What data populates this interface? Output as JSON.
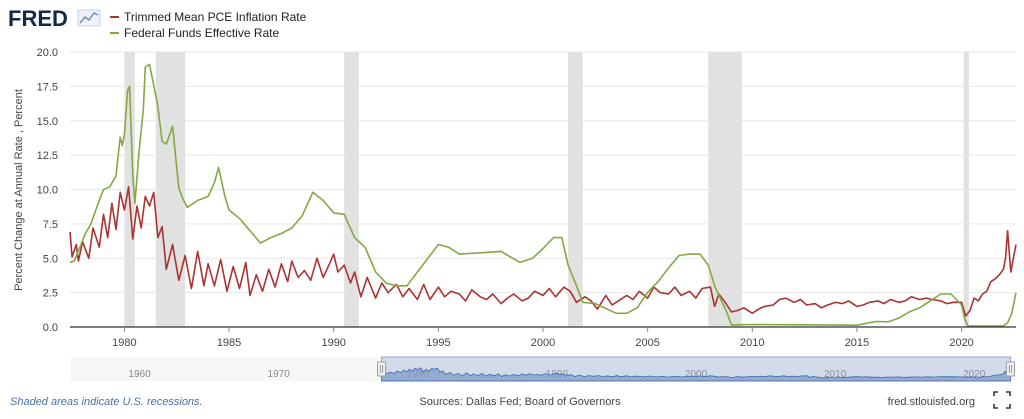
{
  "logo": {
    "text": "FRED"
  },
  "legend_items": [
    {
      "label": "Trimmed Mean PCE Inflation Rate",
      "color": "#aa3333"
    },
    {
      "label": "Federal Funds Effective Rate",
      "color": "#84a843"
    }
  ],
  "footer": {
    "recession_note": "Shaded areas indicate U.S. recessions.",
    "sources": "Sources: Dallas Fed; Board of Governors",
    "site": "fred.stlouisfed.org"
  },
  "colors": {
    "recession": "#e1e1e1",
    "grid": "#e6e6e6",
    "navigator_fill": "#7f9cca",
    "navigator_line": "#3d66a6",
    "link": "#4c6fa5"
  },
  "navigator": {
    "ticks": [
      {
        "year": 1960,
        "label": "1960"
      },
      {
        "year": 1970,
        "label": "1970"
      },
      {
        "year": 1980,
        "label": "1980"
      },
      {
        "year": 1990,
        "label": "1990"
      },
      {
        "year": 2000,
        "label": "2000"
      },
      {
        "year": 2010,
        "label": "2010"
      },
      {
        "year": 2020,
        "label": "2020"
      }
    ],
    "range_years": [
      1955,
      2023
    ],
    "selected_years": [
      1977.4,
      2022.6
    ]
  },
  "chart_data": {
    "type": "line",
    "title": "",
    "xlabel": "",
    "ylabel": "Percent Change at Annual Rate , Percent",
    "xlim": [
      1977.4,
      2022.6
    ],
    "ylim": [
      0,
      20
    ],
    "grid": true,
    "legend_position": "top-left",
    "x_ticks": [
      {
        "value": 1980,
        "label": "1980"
      },
      {
        "value": 1985,
        "label": "1985"
      },
      {
        "value": 1990,
        "label": "1990"
      },
      {
        "value": 1995,
        "label": "1995"
      },
      {
        "value": 2000,
        "label": "2000"
      },
      {
        "value": 2005,
        "label": "2005"
      },
      {
        "value": 2010,
        "label": "2010"
      },
      {
        "value": 2015,
        "label": "2015"
      },
      {
        "value": 2020,
        "label": "2020"
      }
    ],
    "y_ticks": [
      {
        "value": 0,
        "label": "0.0"
      },
      {
        "value": 2.5,
        "label": "2.5"
      },
      {
        "value": 5,
        "label": "5.0"
      },
      {
        "value": 7.5,
        "label": "7.5"
      },
      {
        "value": 10,
        "label": "10.0"
      },
      {
        "value": 12.5,
        "label": "12.5"
      },
      {
        "value": 15,
        "label": "15.0"
      },
      {
        "value": 17.5,
        "label": "17.5"
      },
      {
        "value": 20,
        "label": "20.0"
      }
    ],
    "recessions": [
      [
        1980.0,
        1980.5
      ],
      [
        1981.5,
        1982.9
      ],
      [
        1990.5,
        1991.2
      ],
      [
        2001.2,
        2001.9
      ],
      [
        2007.9,
        2009.5
      ],
      [
        2020.1,
        2020.35
      ]
    ],
    "series": [
      {
        "name": "Trimmed Mean PCE Inflation Rate",
        "color": "#aa3333",
        "x": [
          1977.4,
          1977.5,
          1977.7,
          1977.8,
          1978.0,
          1978.3,
          1978.5,
          1978.8,
          1979.0,
          1979.2,
          1979.4,
          1979.6,
          1979.8,
          1980.0,
          1980.2,
          1980.4,
          1980.6,
          1980.8,
          1981.0,
          1981.2,
          1981.4,
          1981.6,
          1981.8,
          1982.0,
          1982.3,
          1982.6,
          1982.9,
          1983.2,
          1983.5,
          1983.8,
          1984.0,
          1984.3,
          1984.6,
          1984.9,
          1985.2,
          1985.5,
          1985.8,
          1986.0,
          1986.3,
          1986.6,
          1986.9,
          1987.2,
          1987.5,
          1987.8,
          1988.0,
          1988.3,
          1988.6,
          1988.9,
          1989.2,
          1989.5,
          1989.8,
          1990.0,
          1990.2,
          1990.5,
          1990.8,
          1991.0,
          1991.3,
          1991.6,
          1992.0,
          1992.3,
          1992.6,
          1993.0,
          1993.3,
          1993.6,
          1994.0,
          1994.3,
          1994.6,
          1995.0,
          1995.3,
          1995.6,
          1996.0,
          1996.3,
          1996.6,
          1997.0,
          1997.3,
          1997.6,
          1998.0,
          1998.3,
          1998.6,
          1999.0,
          1999.3,
          1999.6,
          2000.0,
          2000.3,
          2000.6,
          2001.0,
          2001.3,
          2001.6,
          2002.0,
          2002.3,
          2002.6,
          2003.0,
          2003.3,
          2003.6,
          2004.0,
          2004.3,
          2004.6,
          2005.0,
          2005.3,
          2005.6,
          2006.0,
          2006.3,
          2006.6,
          2007.0,
          2007.3,
          2007.6,
          2008.0,
          2008.2,
          2008.4,
          2008.7,
          2009.0,
          2009.3,
          2009.6,
          2010.0,
          2010.3,
          2010.6,
          2011.0,
          2011.3,
          2011.6,
          2012.0,
          2012.3,
          2012.6,
          2013.0,
          2013.3,
          2013.6,
          2014.0,
          2014.3,
          2014.6,
          2015.0,
          2015.3,
          2015.6,
          2016.0,
          2016.3,
          2016.6,
          2017.0,
          2017.3,
          2017.6,
          2018.0,
          2018.3,
          2018.6,
          2019.0,
          2019.3,
          2019.6,
          2020.0,
          2020.2,
          2020.4,
          2020.6,
          2020.8,
          2021.0,
          2021.2,
          2021.4,
          2021.6,
          2021.8,
          2022.0,
          2022.1,
          2022.2,
          2022.35,
          2022.5,
          2022.6
        ],
        "values": [
          6.9,
          5.1,
          6.0,
          4.8,
          6.2,
          5.0,
          7.2,
          5.8,
          8.2,
          6.5,
          9.0,
          7.1,
          9.8,
          8.5,
          10.2,
          6.4,
          8.8,
          7.2,
          9.5,
          8.8,
          9.8,
          6.5,
          7.3,
          4.2,
          6.0,
          3.4,
          5.2,
          2.8,
          5.5,
          3.0,
          4.6,
          3.0,
          4.9,
          2.6,
          4.4,
          2.8,
          4.7,
          2.3,
          3.8,
          2.6,
          4.2,
          2.9,
          4.6,
          3.3,
          4.8,
          3.6,
          4.1,
          3.4,
          5.0,
          3.6,
          4.6,
          5.3,
          4.0,
          4.5,
          3.2,
          4.0,
          2.2,
          3.6,
          2.1,
          3.2,
          2.5,
          3.1,
          2.2,
          2.8,
          2.0,
          3.1,
          2.0,
          2.9,
          2.2,
          2.6,
          2.4,
          1.9,
          2.7,
          2.2,
          2.0,
          2.4,
          1.7,
          2.1,
          2.4,
          1.9,
          2.1,
          2.6,
          2.3,
          2.8,
          2.2,
          2.9,
          2.6,
          1.8,
          2.2,
          1.9,
          1.3,
          2.3,
          1.6,
          1.9,
          2.3,
          2.0,
          2.6,
          2.1,
          2.9,
          2.5,
          2.4,
          2.9,
          2.3,
          2.6,
          2.1,
          2.8,
          2.9,
          1.5,
          2.4,
          1.8,
          1.1,
          1.2,
          1.4,
          1.0,
          1.3,
          1.5,
          1.6,
          2.0,
          2.1,
          1.8,
          2.0,
          1.6,
          1.7,
          1.4,
          1.6,
          1.8,
          1.7,
          1.9,
          1.5,
          1.6,
          1.8,
          1.9,
          1.7,
          2.0,
          1.8,
          1.9,
          2.2,
          2.0,
          2.1,
          2.0,
          1.9,
          1.7,
          1.8,
          1.8,
          0.8,
          1.2,
          2.1,
          1.9,
          2.4,
          2.6,
          3.3,
          3.5,
          3.8,
          4.2,
          5.0,
          7.0,
          4.0,
          5.2,
          6.0
        ]
      },
      {
        "name": "Federal Funds Effective Rate",
        "color": "#84a843",
        "x": [
          1977.4,
          1977.6,
          1977.9,
          1978.1,
          1978.4,
          1978.7,
          1979.0,
          1979.3,
          1979.6,
          1979.8,
          1979.9,
          1980.0,
          1980.15,
          1980.25,
          1980.4,
          1980.5,
          1980.7,
          1980.9,
          1981.0,
          1981.2,
          1981.4,
          1981.6,
          1981.8,
          1982.0,
          1982.3,
          1982.6,
          1982.8,
          1983.0,
          1983.5,
          1984.0,
          1984.3,
          1984.5,
          1984.8,
          1985.0,
          1985.5,
          1986.0,
          1986.5,
          1987.0,
          1987.5,
          1988.0,
          1988.5,
          1989.0,
          1989.5,
          1990.0,
          1990.5,
          1991.0,
          1991.5,
          1992.0,
          1992.5,
          1993.0,
          1993.5,
          1994.0,
          1994.5,
          1995.0,
          1995.5,
          1996.0,
          1997.0,
          1998.0,
          1998.9,
          1999.5,
          2000.0,
          2000.5,
          2000.9,
          2001.2,
          2001.6,
          2001.9,
          2002.5,
          2003.5,
          2004.0,
          2004.5,
          2005.0,
          2005.5,
          2006.0,
          2006.5,
          2007.0,
          2007.5,
          2007.9,
          2008.2,
          2008.5,
          2008.8,
          2009.0,
          2010.0,
          2015.0,
          2015.9,
          2016.5,
          2017.0,
          2017.5,
          2018.0,
          2018.5,
          2019.0,
          2019.5,
          2020.0,
          2020.15,
          2020.3,
          2021.0,
          2022.0,
          2022.2,
          2022.4,
          2022.6
        ],
        "values": [
          4.7,
          4.8,
          5.9,
          6.7,
          7.5,
          8.8,
          10.0,
          10.2,
          11.0,
          13.8,
          13.2,
          14.0,
          17.2,
          17.5,
          11.0,
          9.0,
          12.8,
          15.8,
          18.9,
          19.1,
          17.6,
          16.0,
          13.5,
          13.3,
          14.6,
          10.1,
          9.3,
          8.7,
          9.2,
          9.5,
          10.5,
          11.6,
          9.5,
          8.5,
          7.9,
          7.0,
          6.1,
          6.5,
          6.8,
          7.2,
          8.1,
          9.8,
          9.2,
          8.3,
          8.2,
          6.5,
          5.8,
          4.0,
          3.2,
          3.0,
          3.0,
          4.0,
          5.0,
          6.0,
          5.8,
          5.3,
          5.4,
          5.5,
          4.7,
          5.0,
          5.7,
          6.5,
          6.5,
          4.5,
          3.0,
          1.8,
          1.7,
          1.0,
          1.0,
          1.4,
          2.5,
          3.3,
          4.3,
          5.2,
          5.3,
          5.3,
          4.5,
          3.0,
          2.0,
          1.0,
          0.15,
          0.18,
          0.13,
          0.4,
          0.38,
          0.65,
          1.1,
          1.4,
          1.9,
          2.4,
          2.4,
          1.6,
          0.6,
          0.08,
          0.08,
          0.08,
          0.3,
          1.0,
          2.5
        ]
      }
    ]
  }
}
